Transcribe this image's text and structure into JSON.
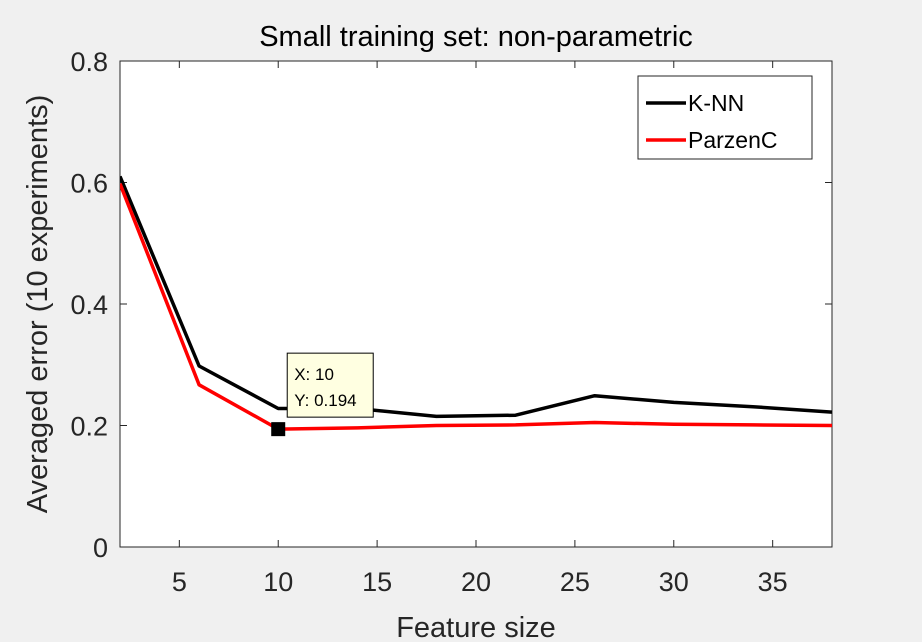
{
  "chart_data": {
    "type": "line",
    "title": "Small training set: non-parametric",
    "xlabel": "Feature size",
    "ylabel": "Averaged error (10 experiments)",
    "xlim": [
      2,
      38
    ],
    "ylim": [
      0,
      0.8
    ],
    "xticks": [
      5,
      10,
      15,
      20,
      25,
      30,
      35
    ],
    "yticks": [
      0,
      0.2,
      0.4,
      0.6,
      0.8
    ],
    "xtick_labels": [
      "5",
      "10",
      "15",
      "20",
      "25",
      "30",
      "35"
    ],
    "ytick_labels": [
      "0",
      "0.2",
      "0.4",
      "0.6",
      "0.8"
    ],
    "x": [
      2,
      6,
      10,
      14,
      18,
      22,
      26,
      30,
      34,
      38
    ],
    "series": [
      {
        "name": "K-NN",
        "color": "#000000",
        "values": [
          0.61,
          0.298,
          0.228,
          0.228,
          0.215,
          0.217,
          0.249,
          0.238,
          0.231,
          0.222
        ]
      },
      {
        "name": "ParzenC",
        "color": "#ff0000",
        "values": [
          0.598,
          0.267,
          0.194,
          0.196,
          0.2,
          0.201,
          0.205,
          0.202,
          0.201,
          0.2
        ]
      }
    ],
    "grid": false,
    "legend_position": "top-right",
    "datatip": {
      "x": 10,
      "y": 0.194,
      "x_text": "X: 10",
      "y_text": "Y: 0.194"
    }
  }
}
